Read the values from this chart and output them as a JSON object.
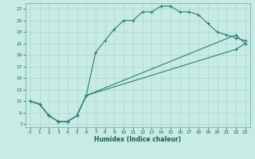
{
  "xlabel": "Humidex (Indice chaleur)",
  "bg_color": "#c8ebe6",
  "line_color": "#2e7d6e",
  "grid_color": "#a8d8d0",
  "line1_x": [
    0,
    1,
    2,
    3,
    4,
    5,
    6,
    7,
    8,
    9,
    10,
    11,
    12,
    13,
    14,
    15,
    16,
    17,
    18,
    19,
    20,
    21,
    22,
    23
  ],
  "line1_y": [
    11,
    10.5,
    8.5,
    7.5,
    7.5,
    8.5,
    12.0,
    19.5,
    21.5,
    23.5,
    25.0,
    25.0,
    26.5,
    26.5,
    27.5,
    27.5,
    26.5,
    26.5,
    26.0,
    24.5,
    23.0,
    22.5,
    22.0,
    21.5
  ],
  "line2_x": [
    0,
    1,
    2,
    3,
    4,
    5,
    6,
    22,
    23
  ],
  "line2_y": [
    11,
    10.5,
    8.5,
    7.5,
    7.5,
    8.5,
    12.0,
    22.5,
    21.0
  ],
  "line3_x": [
    0,
    1,
    2,
    3,
    4,
    5,
    6,
    22,
    23
  ],
  "line3_y": [
    11,
    10.5,
    8.5,
    7.5,
    7.5,
    8.5,
    12.0,
    20.0,
    21.0
  ],
  "xlim": [
    -0.5,
    23.5
  ],
  "ylim": [
    6.5,
    28.0
  ],
  "yticks": [
    7,
    9,
    11,
    13,
    15,
    17,
    19,
    21,
    23,
    25,
    27
  ],
  "xticks": [
    0,
    1,
    2,
    3,
    4,
    5,
    6,
    7,
    8,
    9,
    10,
    11,
    12,
    13,
    14,
    15,
    16,
    17,
    18,
    19,
    20,
    21,
    22,
    23
  ]
}
